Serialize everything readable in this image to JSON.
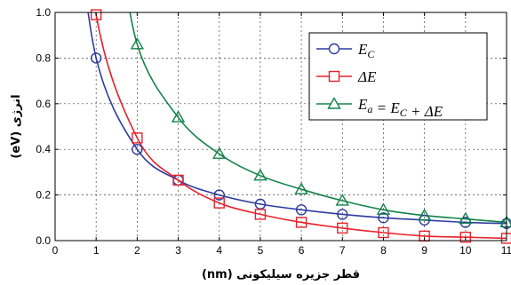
{
  "chart_data": {
    "type": "line",
    "title": "",
    "xlabel": "قطر جزیره سیلیکونی (nm)",
    "ylabel": "انرژی (eV)",
    "xlim": [
      0,
      11
    ],
    "ylim": [
      0,
      1.0
    ],
    "x_ticks": [
      0,
      1,
      2,
      3,
      4,
      5,
      6,
      7,
      8,
      9,
      10,
      11
    ],
    "y_ticks": [
      0.0,
      0.2,
      0.4,
      0.6,
      0.8,
      1.0
    ],
    "y_tick_labels": [
      "0.0",
      "0.2",
      "0.4",
      "0.6",
      "0.8",
      "1.0"
    ],
    "grid": true,
    "legend_position": "top-right",
    "series": [
      {
        "name": "E_C",
        "label_main": "E",
        "label_sub": "C",
        "color": "#2d3c9e",
        "marker": "circle",
        "x": [
          1,
          2,
          3,
          4,
          5,
          6,
          7,
          8,
          9,
          10,
          11
        ],
        "y": [
          0.8,
          0.4,
          0.265,
          0.2,
          0.16,
          0.135,
          0.115,
          0.1,
          0.09,
          0.08,
          0.075
        ]
      },
      {
        "name": "ΔE",
        "label_main": "ΔE",
        "label_sub": "",
        "color": "#e8212a",
        "marker": "square",
        "x": [
          1,
          2,
          3,
          4,
          5,
          6,
          7,
          8,
          9,
          10,
          11
        ],
        "y": [
          0.99,
          0.45,
          0.265,
          0.165,
          0.115,
          0.08,
          0.055,
          0.035,
          0.02,
          0.015,
          0.01
        ]
      },
      {
        "name": "E_a = E_C + ΔE",
        "label_main": "E",
        "label_sub": "a",
        "label_rest": " = E",
        "label_sub2": "C",
        "label_tail": " + ΔE",
        "color": "#13834a",
        "marker": "triangle",
        "x": [
          2,
          3,
          4,
          5,
          6,
          7,
          8,
          9,
          10,
          11
        ],
        "y": [
          0.86,
          0.54,
          0.38,
          0.285,
          0.225,
          0.175,
          0.135,
          0.11,
          0.095,
          0.08
        ]
      }
    ]
  }
}
